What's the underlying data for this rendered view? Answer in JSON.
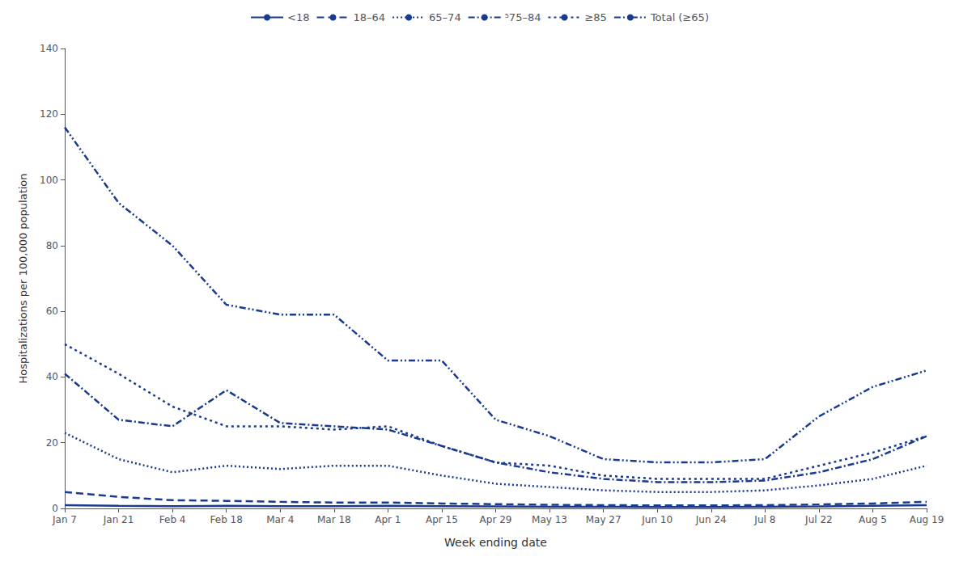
{
  "chart_data": {
    "type": "line",
    "categories": [
      "Jan 7",
      "Jan 21",
      "Feb 4",
      "Feb 18",
      "Mar 4",
      "Mar 18",
      "Apr 1",
      "Apr 15",
      "Apr 29",
      "May 13",
      "May 27",
      "Jun 10",
      "Jun 24",
      "Jul 8",
      "Jul 22",
      "Aug 5",
      "Aug 19"
    ],
    "series": [
      {
        "name": "<18",
        "color": "#1a3a8f",
        "line_style": "solid",
        "values": [
          1.0,
          0.8,
          0.7,
          0.8,
          0.7,
          0.7,
          0.8,
          0.7,
          0.6,
          0.5,
          0.5,
          0.4,
          0.4,
          0.5,
          0.6,
          0.8,
          1.0
        ]
      },
      {
        "name": "18–64",
        "color": "#1a3a8f",
        "line_style": "dashed",
        "values": [
          5.0,
          3.5,
          2.5,
          2.3,
          2.0,
          1.8,
          1.8,
          1.5,
          1.3,
          1.1,
          1.0,
          0.9,
          0.9,
          1.0,
          1.2,
          1.5,
          2.0
        ]
      },
      {
        "name": "65–74",
        "color": "#1a3a8f",
        "line_style": "fine-dotted",
        "values": [
          23.0,
          15.0,
          11.0,
          13.0,
          12.0,
          13.0,
          13.0,
          10.0,
          7.5,
          6.5,
          5.5,
          5.0,
          5.0,
          5.5,
          7.0,
          9.0,
          13.0
        ]
      },
      {
        "name": "⁵75–84",
        "color": "#1a3a8f",
        "line_style": "dash-dot",
        "values": [
          41.0,
          27.0,
          25.0,
          36.0,
          26.0,
          25.0,
          24.0,
          19.0,
          14.0,
          11.0,
          9.0,
          8.0,
          8.0,
          8.5,
          11.0,
          15.0,
          22.0
        ]
      },
      {
        "name": "≥85",
        "color": "#1a3a8f",
        "line_style": "dotted",
        "values": [
          50.0,
          41.0,
          31.0,
          25.0,
          25.0,
          24.0,
          25.0,
          19.0,
          14.0,
          13.0,
          10.0,
          9.0,
          9.0,
          9.0,
          13.0,
          17.0,
          22.0
        ]
      },
      {
        "name": "Total (≥65)",
        "color": "#1a3a8f",
        "line_style": "dash-dot-dot",
        "values": [
          116.0,
          93.0,
          80.0,
          62.0,
          59.0,
          59.0,
          45.0,
          45.0,
          27.0,
          22.0,
          15.0,
          14.0,
          14.0,
          15.0,
          28.0,
          37.0,
          42.0
        ]
      }
    ],
    "xlabel": "Week ending date",
    "ylabel": "Hospitalizations per 100,000 population",
    "ylim": [
      0,
      140
    ],
    "yticks": [
      0,
      20,
      40,
      60,
      80,
      100,
      120,
      140
    ],
    "grid": false,
    "legend": "top"
  }
}
